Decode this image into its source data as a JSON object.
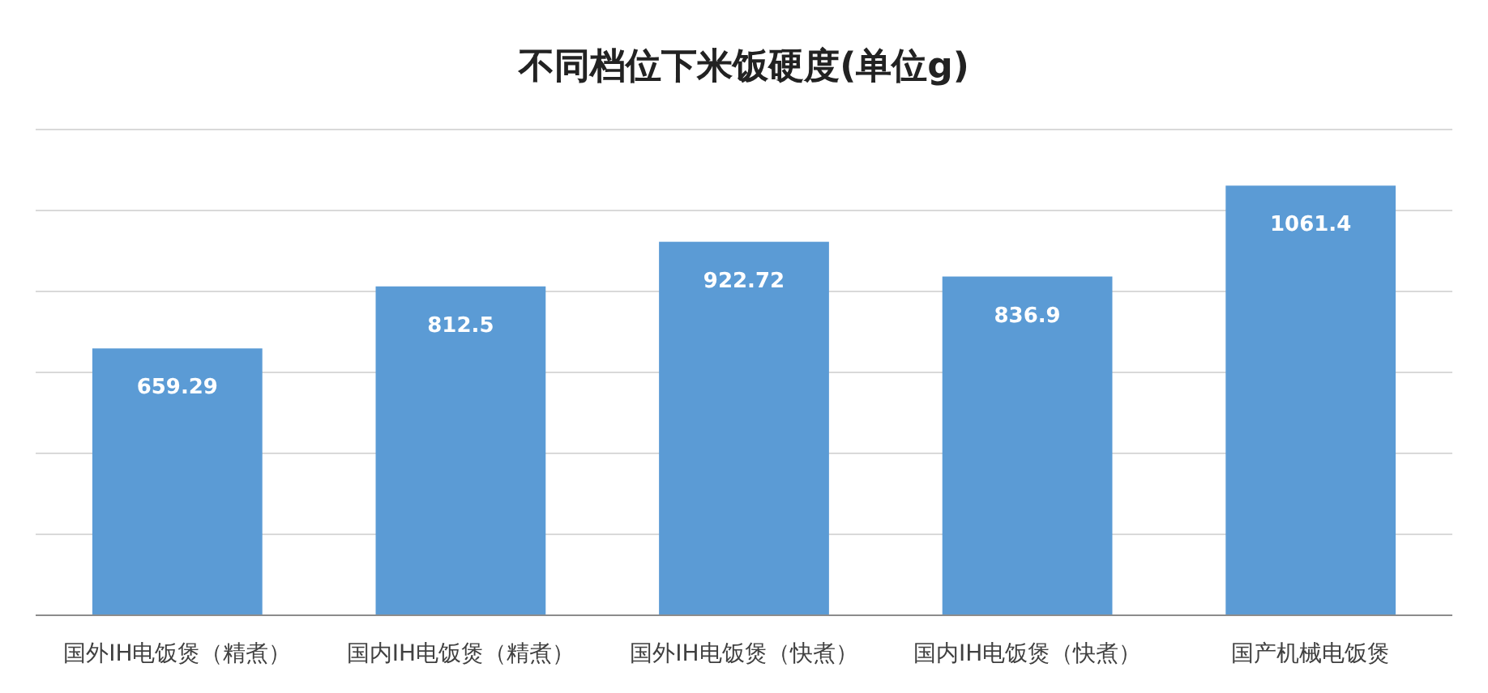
{
  "chart_data": {
    "type": "bar",
    "title": "不同档位下米饭硬度(单位g)",
    "categories": [
      "国外IH电饭煲（精煮）",
      "国内IH电饭煲（精煮）",
      "国外IH电饭煲（快煮）",
      "国内IH电饭煲（快煮）",
      "国产机械电饭煲"
    ],
    "values": [
      659.29,
      812.5,
      922.72,
      836.9,
      1061.4
    ],
    "color": "#5b9bd5",
    "ylim": [
      0,
      1200
    ],
    "yticks": [
      {
        "value": 0,
        "label": null
      },
      {
        "value": 200,
        "label": null
      },
      {
        "value": 400,
        "label": null
      },
      {
        "value": 600,
        "label": null
      },
      {
        "value": 800,
        "label": null
      },
      {
        "value": 1000,
        "label": null
      },
      {
        "value": 1200,
        "label": null
      }
    ],
    "grid": "y",
    "data_labels": true
  }
}
